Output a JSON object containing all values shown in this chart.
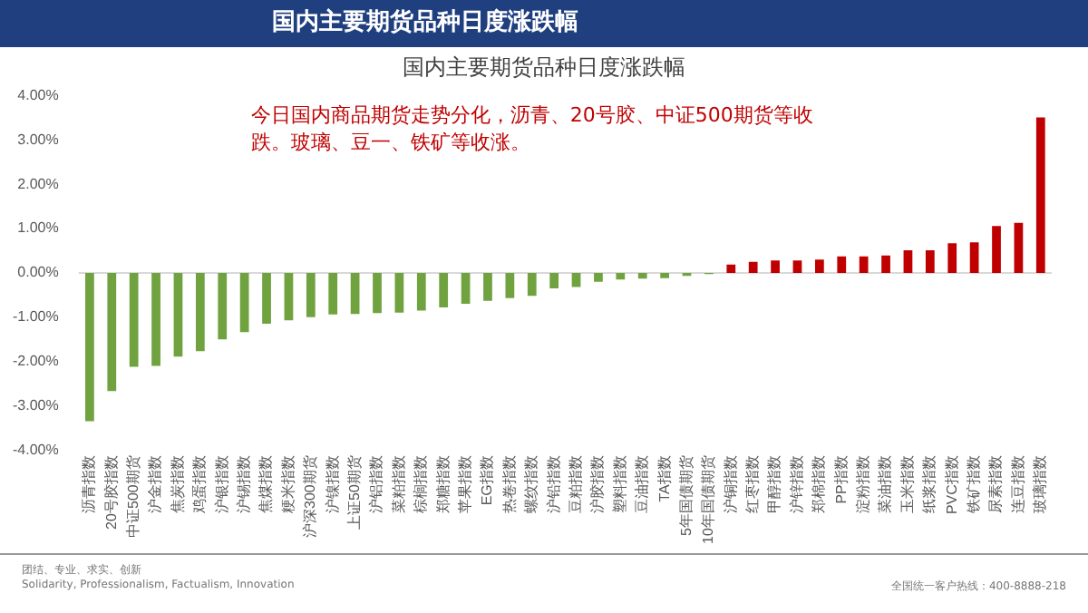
{
  "chart_data": {
    "type": "bar",
    "title": "国内主要期货品种日度涨跌幅",
    "subtitle": "国内主要期货品种日度涨跌幅",
    "categories": [
      "沥青指数",
      "20号胶指数",
      "中证500期货",
      "沪金指数",
      "焦炭指数",
      "鸡蛋指数",
      "沪银指数",
      "沪锡指数",
      "焦煤指数",
      "粳米指数",
      "沪深300期货",
      "沪镍指数",
      "上证50期货",
      "沪铝指数",
      "菜粕指数",
      "棕榈指数",
      "郑糖指数",
      "苹果指数",
      "EG指数",
      "热卷指数",
      "螺纹指数",
      "沪铅指数",
      "豆粕指数",
      "沪胶指数",
      "塑料指数",
      "豆油指数",
      "TA指数",
      "5年国债期货",
      "10年国债期货",
      "沪铜指数",
      "红枣指数",
      "甲醇指数",
      "沪锌指数",
      "郑棉指数",
      "PP指数",
      "淀粉指数",
      "菜油指数",
      "玉米指数",
      "纸浆指数",
      "PVC指数",
      "铁矿指数",
      "尿素指数",
      "连豆指数",
      "玻璃指数"
    ],
    "values": [
      -3.35,
      -2.67,
      -2.12,
      -2.1,
      -1.89,
      -1.77,
      -1.5,
      -1.34,
      -1.15,
      -1.07,
      -1.0,
      -0.94,
      -0.93,
      -0.91,
      -0.9,
      -0.85,
      -0.78,
      -0.7,
      -0.63,
      -0.57,
      -0.52,
      -0.35,
      -0.32,
      -0.2,
      -0.15,
      -0.13,
      -0.12,
      -0.07,
      -0.03,
      0.19,
      0.25,
      0.28,
      0.28,
      0.3,
      0.37,
      0.37,
      0.39,
      0.51,
      0.51,
      0.67,
      0.69,
      1.06,
      1.13,
      3.51
    ],
    "colors": [
      "#70a33f",
      "#70a33f",
      "#70a33f",
      "#70a33f",
      "#70a33f",
      "#70a33f",
      "#70a33f",
      "#70a33f",
      "#70a33f",
      "#70a33f",
      "#70a33f",
      "#70a33f",
      "#70a33f",
      "#70a33f",
      "#70a33f",
      "#70a33f",
      "#70a33f",
      "#70a33f",
      "#70a33f",
      "#70a33f",
      "#70a33f",
      "#70a33f",
      "#70a33f",
      "#70a33f",
      "#70a33f",
      "#70a33f",
      "#70a33f",
      "#70a33f",
      "#70a33f",
      "#c00000",
      "#c00000",
      "#c00000",
      "#c00000",
      "#c00000",
      "#c00000",
      "#c00000",
      "#c00000",
      "#c00000",
      "#c00000",
      "#c00000",
      "#c00000",
      "#c00000",
      "#c00000",
      "#c00000"
    ],
    "ylim": [
      -4,
      4
    ],
    "yticks": [
      {
        "value": -4,
        "label": "-4.00%"
      },
      {
        "value": -3,
        "label": "-3.00%"
      },
      {
        "value": -2,
        "label": "-2.00%"
      },
      {
        "value": -1,
        "label": "-1.00%"
      },
      {
        "value": 0,
        "label": "0.00%"
      },
      {
        "value": 1,
        "label": "1.00%"
      },
      {
        "value": 2,
        "label": "2.00%"
      },
      {
        "value": 3,
        "label": "3.00%"
      },
      {
        "value": 4,
        "label": "4.00%"
      }
    ],
    "grid": false,
    "legend": false,
    "ref_lines": [
      {
        "axis": "y",
        "value": 0,
        "color": "#d9d9d9"
      }
    ],
    "annotations": [
      "今日国内商品期货走势分化，沥青、20号胶、中证500期货等收跌。玻璃、豆一、铁矿等收涨。",
      "团结、专业、求实、创新",
      "Solidarity, Professionalism, Factualism, Innovation",
      "全国统一客户热线：400-8888-218"
    ]
  }
}
